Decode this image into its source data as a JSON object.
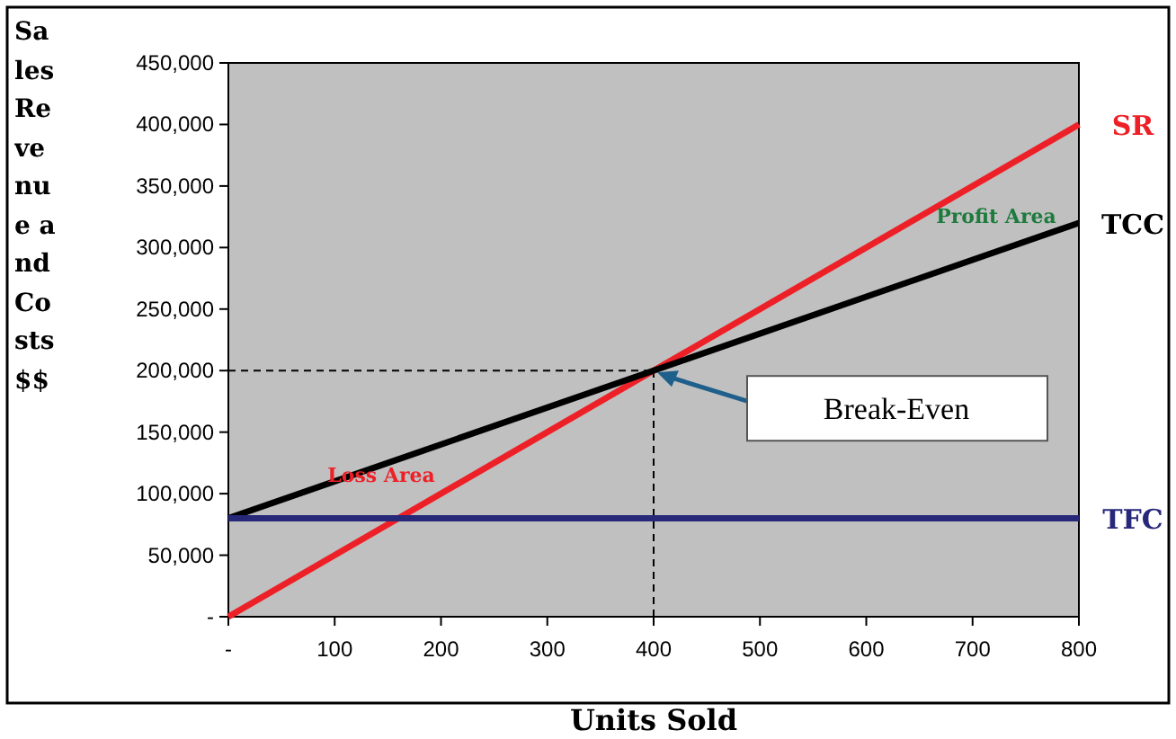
{
  "chart_data": {
    "type": "line",
    "xlabel": "Units Sold",
    "ylabel": "Sales Revenue and Costs $$",
    "x": [
      0,
      800
    ],
    "series": [
      {
        "name": "SR",
        "color": "#ee2027",
        "values": [
          0,
          400000
        ]
      },
      {
        "name": "TCC",
        "color": "#000000",
        "values": [
          80000,
          320000
        ]
      },
      {
        "name": "TFC",
        "color": "#28287a",
        "values": [
          80000,
          80000
        ]
      }
    ],
    "xlim": [
      0,
      800
    ],
    "xticks": [
      {
        "value": 0,
        "label": "-"
      },
      100,
      200,
      300,
      400,
      500,
      600,
      700,
      800
    ],
    "ylim": [
      0,
      450000
    ],
    "yticks": [
      {
        "value": 0,
        "label": "-"
      },
      {
        "value": 50000,
        "label": "50,000"
      },
      {
        "value": 100000,
        "label": "100,000"
      },
      {
        "value": 150000,
        "label": "150,000"
      },
      {
        "value": 200000,
        "label": "200,000"
      },
      {
        "value": 250000,
        "label": "250,000"
      },
      {
        "value": 300000,
        "label": "300,000"
      },
      {
        "value": 350000,
        "label": "350,000"
      },
      {
        "value": 400000,
        "label": "400,000"
      },
      {
        "value": 450000,
        "label": "450,000"
      }
    ],
    "ref_lines": [
      {
        "axis": "x",
        "value": 400,
        "line_style": "dashed",
        "color": "#000000"
      },
      {
        "axis": "y",
        "value": 200000,
        "line_style": "dashed",
        "color": "#000000"
      }
    ],
    "annotations": [
      "Break-Even",
      "Loss Area",
      "Profit Area"
    ],
    "grid": false,
    "marker": "none",
    "line_style": "solid"
  }
}
